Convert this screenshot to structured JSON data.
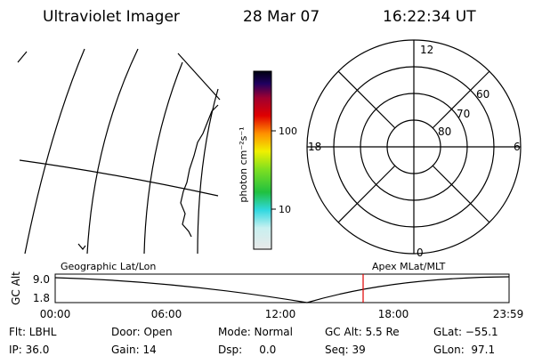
{
  "header": {
    "title": "Ultraviolet Imager",
    "date": "28 Mar 07",
    "time": "16:22:34 UT"
  },
  "colorbar": {
    "label": "photon cm⁻²s⁻¹",
    "ticks": [
      "100",
      "10"
    ]
  },
  "polar": {
    "hour_labels": [
      "12",
      "6",
      "0",
      "18"
    ],
    "lat_labels": [
      "80",
      "70",
      "60"
    ]
  },
  "timeline": {
    "left_label": "Geographic Lat/Lon",
    "right_label": "Apex MLat/MLT",
    "axis_label": "GC Alt",
    "y_labels": [
      "9.0",
      "1.8"
    ],
    "x_labels": [
      "00:00",
      "06:00",
      "12:00",
      "18:00",
      "23:59"
    ]
  },
  "info": {
    "rows": [
      [
        "Flt: LBHL",
        "Door: Open",
        "Mode: Normal",
        "GC Alt: 5.5 Re",
        "GLat: −55.1"
      ],
      [
        "IP: 36.0",
        "Gain: 14",
        "Dsp:     0.0",
        "Seq: 39",
        "GLon:  97.1"
      ]
    ]
  }
}
